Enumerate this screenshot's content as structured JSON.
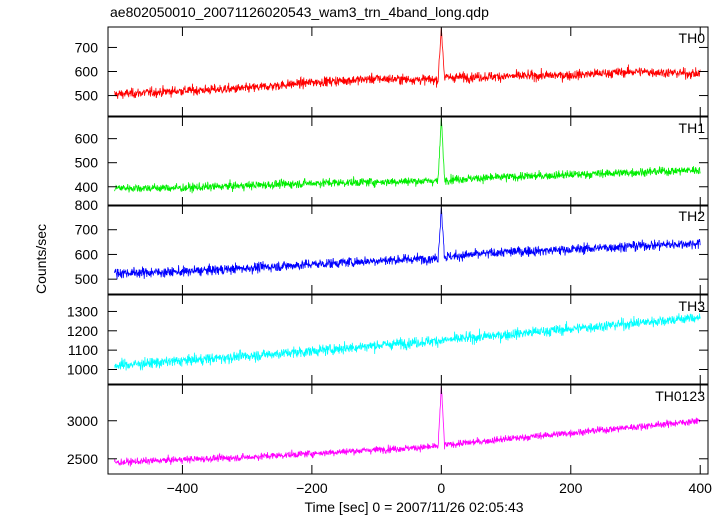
{
  "chart_data": {
    "type": "line",
    "title": "ae802050010_20071126020543_wam3_trn_4band_long.qdp",
    "xlabel": "Time [sec] 0 = 2007/11/26 02:05:43",
    "ylabel": "Counts/sec",
    "xlim": [
      -515,
      412
    ],
    "x_ticks": [
      -400,
      -200,
      0,
      200,
      400
    ],
    "x_tick_labels": [
      "−400",
      "−200",
      "0",
      "200",
      "400"
    ],
    "grid": false,
    "series": [
      {
        "name": "TH0",
        "color": "#ff0000",
        "ylim": [
          415,
          785
        ],
        "y_ticks": [
          500,
          600,
          700
        ],
        "noise_amplitude": 40,
        "x": [
          -505,
          -400,
          -300,
          -200,
          -100,
          -5,
          0,
          5,
          100,
          200,
          300,
          400
        ],
        "values": [
          505,
          520,
          530,
          555,
          570,
          565,
          780,
          575,
          580,
          585,
          600,
          590
        ]
      },
      {
        "name": "TH1",
        "color": "#00ee00",
        "ylim": [
          320,
          690
        ],
        "y_ticks": [
          400,
          500,
          600
        ],
        "noise_amplitude": 35,
        "x": [
          -505,
          -400,
          -300,
          -200,
          -100,
          -5,
          0,
          5,
          100,
          200,
          300,
          400
        ],
        "values": [
          395,
          395,
          405,
          415,
          420,
          425,
          685,
          430,
          440,
          450,
          460,
          470
        ]
      },
      {
        "name": "TH2",
        "color": "#0000ff",
        "ylim": [
          440,
          800
        ],
        "y_ticks": [
          500,
          600,
          700,
          800
        ],
        "noise_amplitude": 40,
        "x": [
          -505,
          -400,
          -300,
          -200,
          -100,
          -5,
          0,
          5,
          100,
          200,
          300,
          400
        ],
        "values": [
          525,
          530,
          545,
          560,
          575,
          585,
          790,
          590,
          610,
          620,
          635,
          645
        ]
      },
      {
        "name": "TH3",
        "color": "#00ffff",
        "ylim": [
          925,
          1385
        ],
        "y_ticks": [
          1000,
          1100,
          1200,
          1300
        ],
        "noise_amplitude": 55,
        "x": [
          -505,
          -400,
          -300,
          -200,
          -100,
          0,
          100,
          200,
          300,
          400
        ],
        "values": [
          1020,
          1045,
          1070,
          1095,
          1125,
          1150,
          1180,
          1210,
          1240,
          1270
        ]
      },
      {
        "name": "TH0123",
        "color": "#ff00ff",
        "ylim": [
          2300,
          3470
        ],
        "y_ticks": [
          2500,
          3000
        ],
        "noise_amplitude": 90,
        "x": [
          -505,
          -400,
          -300,
          -200,
          -100,
          -5,
          0,
          5,
          100,
          200,
          300,
          400
        ],
        "values": [
          2450,
          2490,
          2520,
          2570,
          2620,
          2660,
          3450,
          2680,
          2760,
          2840,
          2920,
          3000
        ]
      }
    ]
  }
}
